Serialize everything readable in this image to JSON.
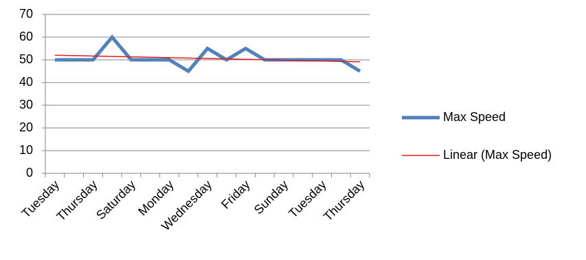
{
  "chart_data": {
    "type": "line",
    "categories": [
      "Tuesday",
      null,
      "Thursday",
      null,
      "Saturday",
      null,
      "Monday",
      null,
      "Wednesday",
      null,
      "Friday",
      null,
      "Sunday",
      null,
      "Tuesday",
      null,
      "Thursday"
    ],
    "series": [
      {
        "name": "Max Speed",
        "color": "#4f81bd",
        "values": [
          50,
          50,
          50,
          60,
          50,
          50,
          50,
          45,
          55,
          50,
          55,
          50,
          50,
          50,
          50,
          50,
          45
        ]
      },
      {
        "name": "Linear (Max Speed)",
        "color": "#e41a1c",
        "trendline": "linear"
      }
    ],
    "ylim": [
      0,
      70
    ],
    "yticks": [
      0,
      10,
      20,
      30,
      40,
      50,
      60,
      70
    ],
    "grid": true,
    "legend": "right"
  }
}
